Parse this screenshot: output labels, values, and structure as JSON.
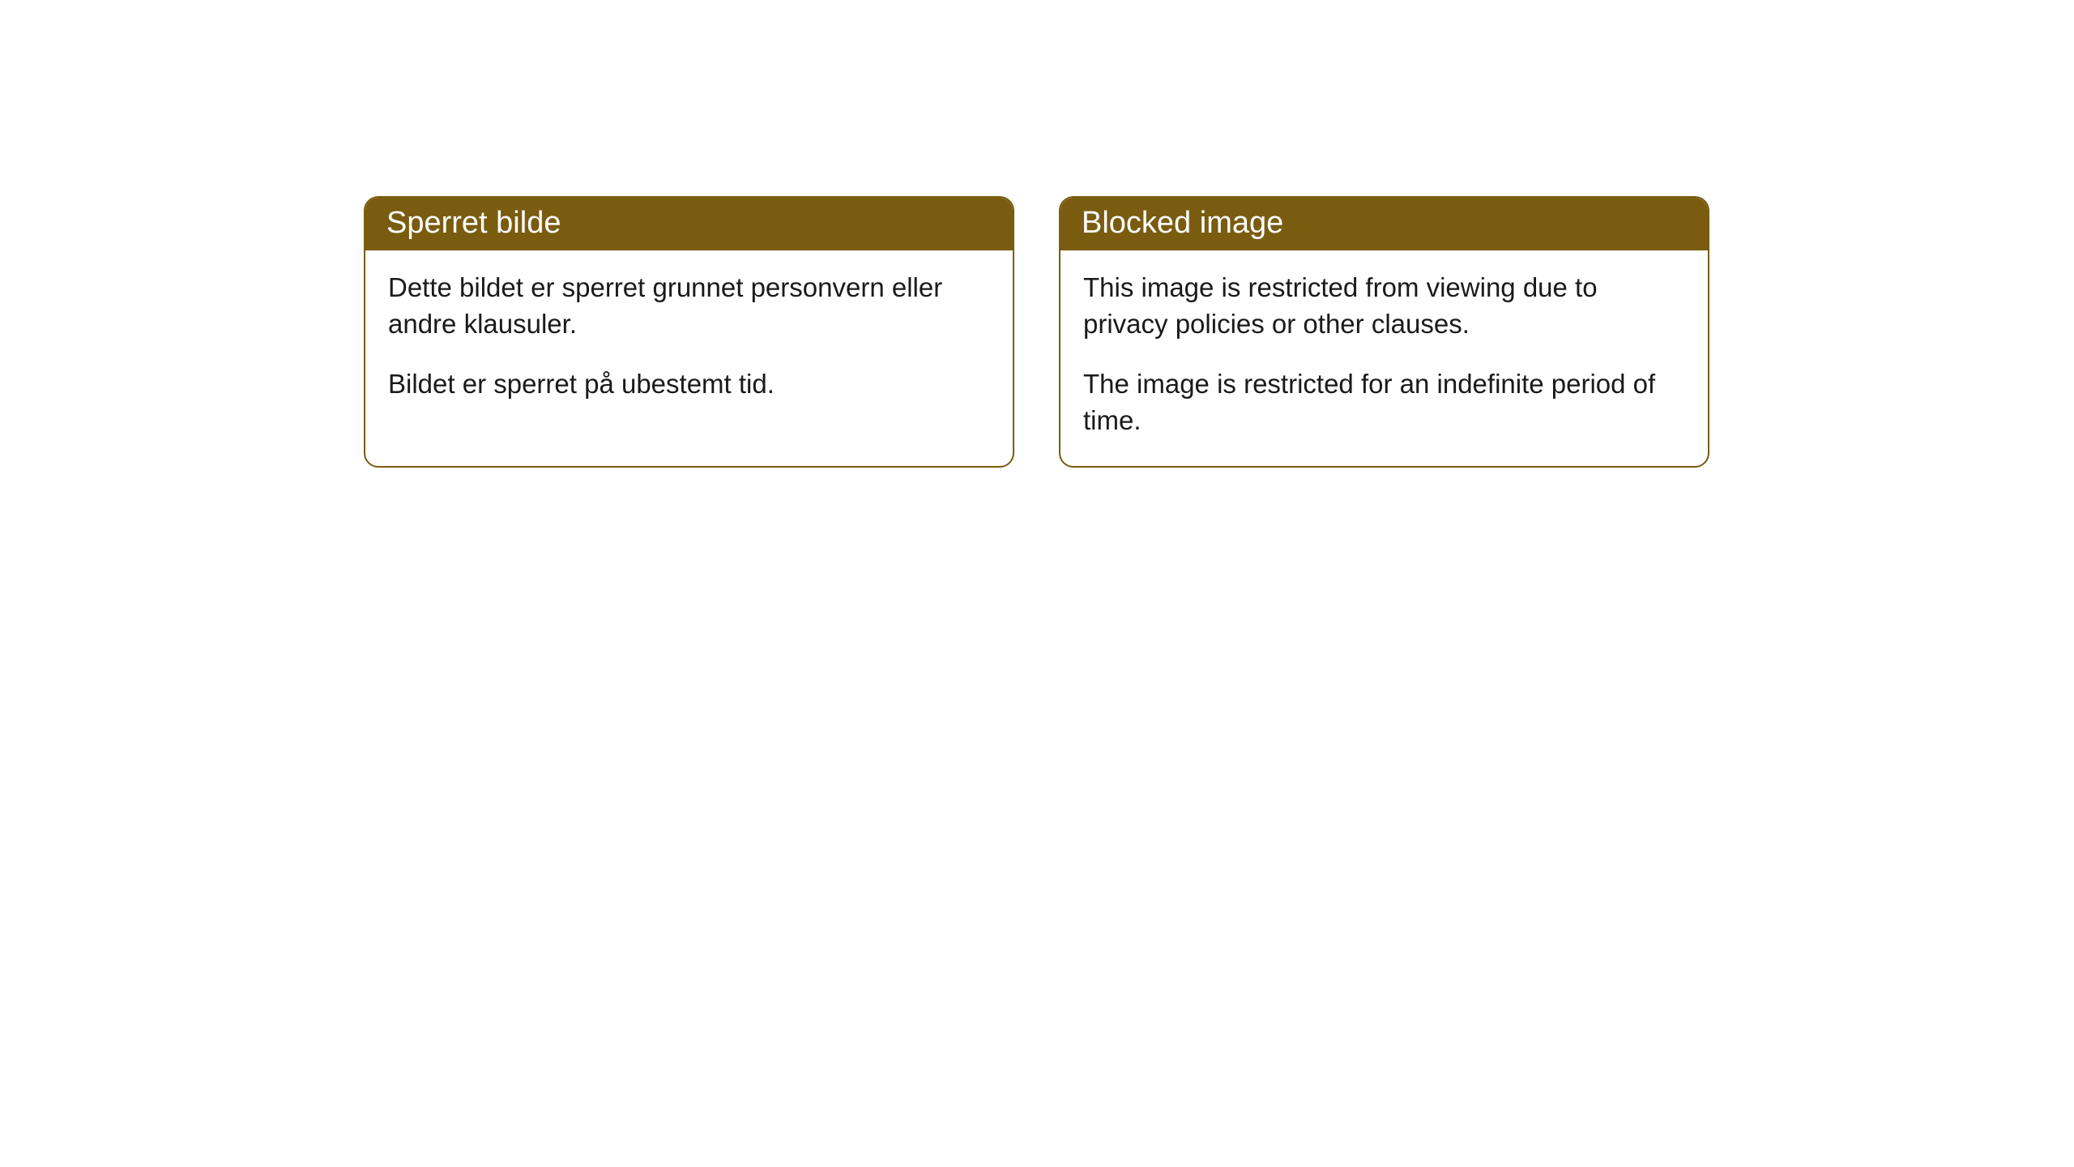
{
  "cards": [
    {
      "title": "Sperret bilde",
      "paragraph1": "Dette bildet er sperret grunnet personvern eller andre klausuler.",
      "paragraph2": "Bildet er sperret på ubestemt tid."
    },
    {
      "title": "Blocked image",
      "paragraph1": "This image is restricted from viewing due to privacy policies or other clauses.",
      "paragraph2": "The image is restricted for an indefinite period of time."
    }
  ],
  "style": {
    "header_background": "#7a5c10",
    "header_text_color": "#ffffff",
    "border_color": "#7a5c10",
    "body_text_color": "#1a1a1a",
    "background_color": "#ffffff",
    "border_radius": 18,
    "title_fontsize": 38,
    "body_fontsize": 33
  }
}
